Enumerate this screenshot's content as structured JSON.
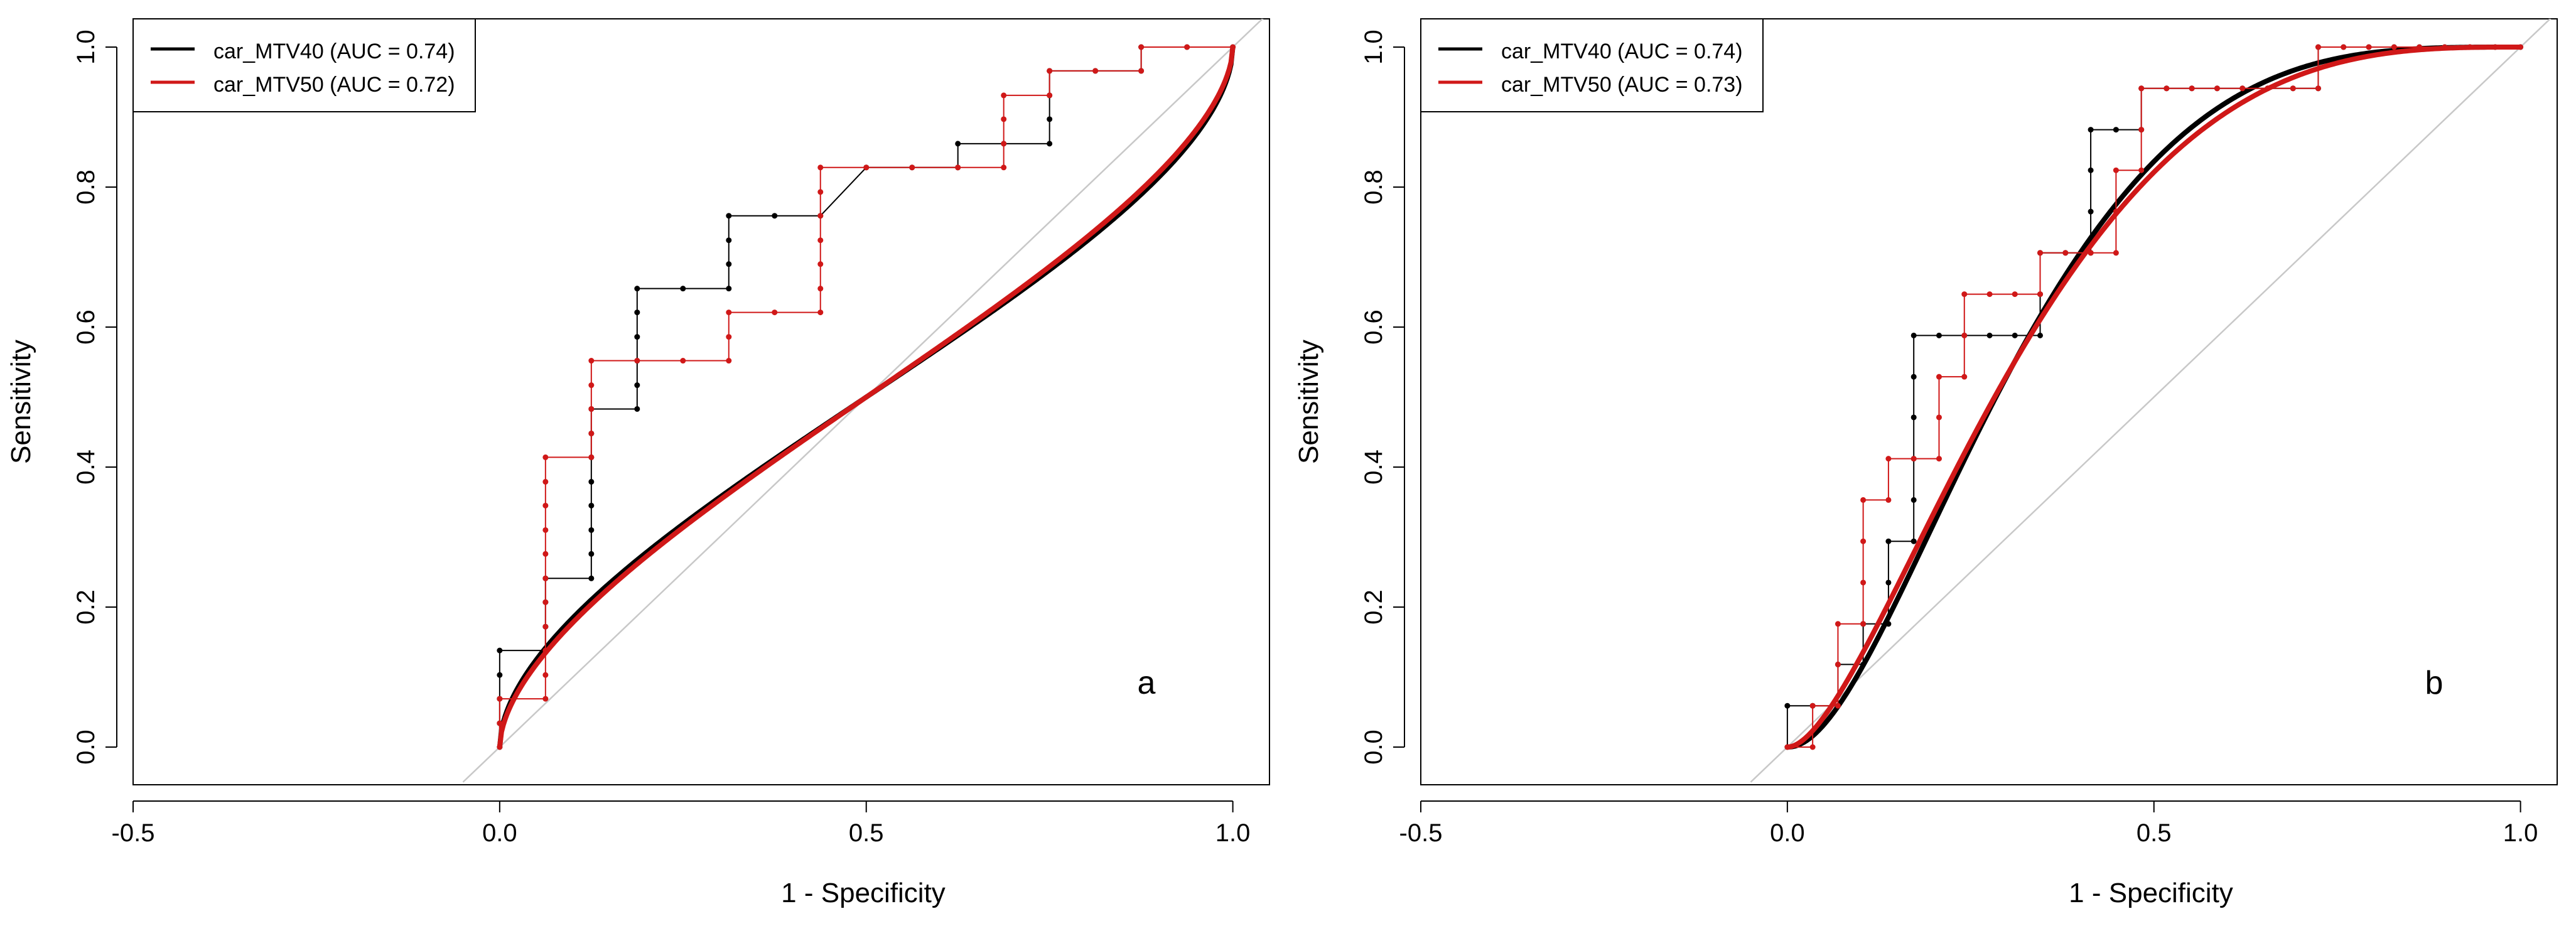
{
  "colors": {
    "black_series": "#000000",
    "red_series": "#d01818",
    "diagonal": "#c8c8c8",
    "axis": "#000000"
  },
  "chart_data": [
    {
      "type": "line",
      "panel_letter": "a",
      "xlabel": "1 - Specificity",
      "ylabel": "Sensitivity",
      "xlim": [
        -0.5,
        1.05
      ],
      "ylim": [
        0.0,
        1.0
      ],
      "x_ticks": [
        "-0.5",
        "0.0",
        "0.5",
        "1.0"
      ],
      "y_ticks": [
        "0.0",
        "0.2",
        "0.4",
        "0.6",
        "0.8",
        "1.0"
      ],
      "x_tick_values": [
        -0.5,
        0.0,
        0.5,
        1.0
      ],
      "y_tick_values": [
        0.0,
        0.2,
        0.4,
        0.6,
        0.8,
        1.0
      ],
      "legend": [
        "car_MTV40 (AUC = 0.74)",
        "car_MTV50 (AUC = 0.72)"
      ],
      "legend_position": "top-left",
      "series": [
        {
          "name": "car_MTV40 (AUC = 0.74)",
          "color": "#000000",
          "smooth_auc": 0.74,
          "smooth_a": 0.0,
          "smooth_b": 0.7,
          "empirical": [
            [
              0,
              0
            ],
            [
              0,
              0.034
            ],
            [
              0,
              0.069
            ],
            [
              0,
              0.103
            ],
            [
              0,
              0.138
            ],
            [
              0.0625,
              0.138
            ],
            [
              0.0625,
              0.172
            ],
            [
              0.0625,
              0.207
            ],
            [
              0.0625,
              0.241
            ],
            [
              0.125,
              0.241
            ],
            [
              0.125,
              0.276
            ],
            [
              0.125,
              0.31
            ],
            [
              0.125,
              0.345
            ],
            [
              0.125,
              0.379
            ],
            [
              0.125,
              0.414
            ],
            [
              0.125,
              0.448
            ],
            [
              0.125,
              0.483
            ],
            [
              0.1875,
              0.483
            ],
            [
              0.1875,
              0.517
            ],
            [
              0.1875,
              0.552
            ],
            [
              0.1875,
              0.586
            ],
            [
              0.1875,
              0.621
            ],
            [
              0.1875,
              0.655
            ],
            [
              0.25,
              0.655
            ],
            [
              0.3125,
              0.655
            ],
            [
              0.3125,
              0.69
            ],
            [
              0.3125,
              0.724
            ],
            [
              0.3125,
              0.759
            ],
            [
              0.375,
              0.759
            ],
            [
              0.4375,
              0.759
            ],
            [
              0.5,
              0.828
            ],
            [
              0.5625,
              0.828
            ],
            [
              0.625,
              0.828
            ],
            [
              0.625,
              0.862
            ],
            [
              0.6875,
              0.862
            ],
            [
              0.75,
              0.862
            ],
            [
              0.75,
              0.897
            ],
            [
              0.75,
              0.931
            ],
            [
              0.75,
              0.966
            ],
            [
              0.8125,
              0.966
            ],
            [
              0.875,
              0.966
            ],
            [
              0.875,
              1.0
            ],
            [
              0.9375,
              1.0
            ],
            [
              1.0,
              1.0
            ]
          ]
        },
        {
          "name": "car_MTV50 (AUC = 0.72)",
          "color": "#d01818",
          "smooth_auc": 0.72,
          "smooth_a": 0.0,
          "smooth_b": 0.72,
          "empirical": [
            [
              0,
              0
            ],
            [
              0,
              0.034
            ],
            [
              0,
              0.069
            ],
            [
              0.0625,
              0.069
            ],
            [
              0.0625,
              0.103
            ],
            [
              0.0625,
              0.138
            ],
            [
              0.0625,
              0.172
            ],
            [
              0.0625,
              0.207
            ],
            [
              0.0625,
              0.241
            ],
            [
              0.0625,
              0.276
            ],
            [
              0.0625,
              0.31
            ],
            [
              0.0625,
              0.345
            ],
            [
              0.0625,
              0.379
            ],
            [
              0.0625,
              0.414
            ],
            [
              0.125,
              0.414
            ],
            [
              0.125,
              0.448
            ],
            [
              0.125,
              0.483
            ],
            [
              0.125,
              0.517
            ],
            [
              0.125,
              0.552
            ],
            [
              0.1875,
              0.552
            ],
            [
              0.25,
              0.552
            ],
            [
              0.3125,
              0.552
            ],
            [
              0.3125,
              0.586
            ],
            [
              0.3125,
              0.621
            ],
            [
              0.375,
              0.621
            ],
            [
              0.4375,
              0.621
            ],
            [
              0.4375,
              0.655
            ],
            [
              0.4375,
              0.69
            ],
            [
              0.4375,
              0.724
            ],
            [
              0.4375,
              0.759
            ],
            [
              0.4375,
              0.793
            ],
            [
              0.4375,
              0.828
            ],
            [
              0.5,
              0.828
            ],
            [
              0.5625,
              0.828
            ],
            [
              0.625,
              0.828
            ],
            [
              0.6875,
              0.828
            ],
            [
              0.6875,
              0.862
            ],
            [
              0.6875,
              0.897
            ],
            [
              0.6875,
              0.931
            ],
            [
              0.75,
              0.931
            ],
            [
              0.75,
              0.966
            ],
            [
              0.8125,
              0.966
            ],
            [
              0.875,
              0.966
            ],
            [
              0.875,
              1.0
            ],
            [
              0.9375,
              1.0
            ],
            [
              1.0,
              1.0
            ]
          ]
        }
      ]
    },
    {
      "type": "line",
      "panel_letter": "b",
      "xlabel": "1 - Specificity",
      "ylabel": "Sensitivity",
      "xlim": [
        -0.5,
        1.05
      ],
      "ylim": [
        0.0,
        1.0
      ],
      "x_ticks": [
        "-0.5",
        "0.0",
        "0.5",
        "1.0"
      ],
      "y_ticks": [
        "0.0",
        "0.2",
        "0.4",
        "0.6",
        "0.8",
        "1.0"
      ],
      "x_tick_values": [
        -0.5,
        0.0,
        0.5,
        1.0
      ],
      "y_tick_values": [
        0.0,
        0.2,
        0.4,
        0.6,
        0.8,
        1.0
      ],
      "legend": [
        "car_MTV40 (AUC = 0.74)",
        "car_MTV50 (AUC = 0.73)"
      ],
      "legend_position": "top-left",
      "series": [
        {
          "name": "car_MTV40 (AUC = 0.74)",
          "color": "#000000",
          "smooth_auc": 0.74,
          "smooth_a": 0.98,
          "smooth_b": 1.72,
          "empirical": [
            [
              0,
              0
            ],
            [
              0,
              0.059
            ],
            [
              0.0345,
              0.059
            ],
            [
              0.069,
              0.059
            ],
            [
              0.069,
              0.118
            ],
            [
              0.1034,
              0.118
            ],
            [
              0.1034,
              0.176
            ],
            [
              0.1379,
              0.176
            ],
            [
              0.1379,
              0.235
            ],
            [
              0.1379,
              0.294
            ],
            [
              0.1724,
              0.294
            ],
            [
              0.1724,
              0.353
            ],
            [
              0.1724,
              0.412
            ],
            [
              0.1724,
              0.471
            ],
            [
              0.1724,
              0.529
            ],
            [
              0.1724,
              0.588
            ],
            [
              0.2069,
              0.588
            ],
            [
              0.2414,
              0.588
            ],
            [
              0.2759,
              0.588
            ],
            [
              0.3103,
              0.588
            ],
            [
              0.3448,
              0.588
            ],
            [
              0.3448,
              0.647
            ],
            [
              0.3448,
              0.706
            ],
            [
              0.3793,
              0.706
            ],
            [
              0.4138,
              0.706
            ],
            [
              0.4138,
              0.765
            ],
            [
              0.4138,
              0.824
            ],
            [
              0.4138,
              0.882
            ],
            [
              0.4483,
              0.882
            ],
            [
              0.4828,
              0.882
            ],
            [
              0.4828,
              0.941
            ],
            [
              0.5172,
              0.941
            ],
            [
              0.5517,
              0.941
            ],
            [
              0.5862,
              0.941
            ],
            [
              0.6207,
              0.941
            ],
            [
              0.6552,
              0.941
            ],
            [
              0.6897,
              0.941
            ],
            [
              0.7241,
              0.941
            ],
            [
              0.7241,
              1.0
            ],
            [
              0.7586,
              1.0
            ],
            [
              0.7931,
              1.0
            ],
            [
              0.8276,
              1.0
            ],
            [
              0.8621,
              1.0
            ],
            [
              0.8966,
              1.0
            ],
            [
              0.931,
              1.0
            ],
            [
              0.9655,
              1.0
            ],
            [
              1.0,
              1.0
            ]
          ]
        },
        {
          "name": "car_MTV50 (AUC = 0.73)",
          "color": "#d01818",
          "smooth_auc": 0.73,
          "smooth_a": 0.92,
          "smooth_b": 1.6,
          "empirical": [
            [
              0,
              0
            ],
            [
              0.0345,
              0
            ],
            [
              0.0345,
              0.059
            ],
            [
              0.069,
              0.059
            ],
            [
              0.069,
              0.118
            ],
            [
              0.069,
              0.176
            ],
            [
              0.1034,
              0.176
            ],
            [
              0.1034,
              0.235
            ],
            [
              0.1034,
              0.294
            ],
            [
              0.1034,
              0.353
            ],
            [
              0.1379,
              0.353
            ],
            [
              0.1379,
              0.412
            ],
            [
              0.1724,
              0.412
            ],
            [
              0.2069,
              0.412
            ],
            [
              0.2069,
              0.471
            ],
            [
              0.2069,
              0.529
            ],
            [
              0.2414,
              0.529
            ],
            [
              0.2414,
              0.588
            ],
            [
              0.2414,
              0.647
            ],
            [
              0.2759,
              0.647
            ],
            [
              0.3103,
              0.647
            ],
            [
              0.3448,
              0.647
            ],
            [
              0.3448,
              0.706
            ],
            [
              0.3793,
              0.706
            ],
            [
              0.4138,
              0.706
            ],
            [
              0.4483,
              0.706
            ],
            [
              0.4483,
              0.765
            ],
            [
              0.4483,
              0.824
            ],
            [
              0.4828,
              0.824
            ],
            [
              0.4828,
              0.882
            ],
            [
              0.4828,
              0.941
            ],
            [
              0.5172,
              0.941
            ],
            [
              0.5517,
              0.941
            ],
            [
              0.5862,
              0.941
            ],
            [
              0.6207,
              0.941
            ],
            [
              0.6552,
              0.941
            ],
            [
              0.6897,
              0.941
            ],
            [
              0.7241,
              0.941
            ],
            [
              0.7241,
              1.0
            ],
            [
              0.7586,
              1.0
            ],
            [
              0.7931,
              1.0
            ],
            [
              0.8276,
              1.0
            ],
            [
              0.8621,
              1.0
            ],
            [
              0.8966,
              1.0
            ],
            [
              0.931,
              1.0
            ],
            [
              0.9655,
              1.0
            ],
            [
              1.0,
              1.0
            ]
          ]
        }
      ]
    }
  ]
}
